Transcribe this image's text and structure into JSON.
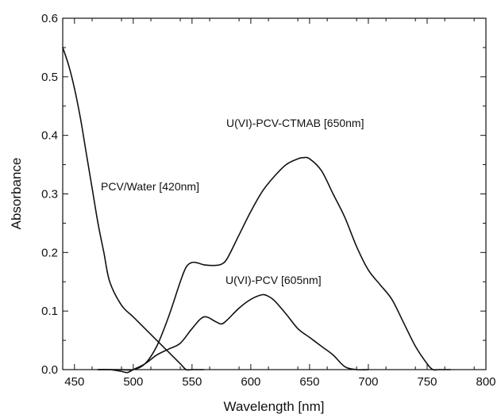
{
  "chart_data": {
    "type": "line",
    "title": "",
    "xlabel": "Wavelength [nm]",
    "ylabel": "Absorbance",
    "xlim": [
      440,
      800
    ],
    "ylim": [
      0.0,
      0.6
    ],
    "x_ticks": [
      450,
      500,
      550,
      600,
      650,
      700,
      750,
      800
    ],
    "y_ticks": [
      0.0,
      0.1,
      0.2,
      0.3,
      0.4,
      0.5,
      0.6
    ],
    "x_tick_labels": [
      "450",
      "500",
      "550",
      "600",
      "650",
      "700",
      "750",
      "800"
    ],
    "y_tick_labels": [
      "0.0",
      "0.1",
      "0.2",
      "0.3",
      "0.4",
      "0.5",
      "0.6"
    ],
    "grid": false,
    "legend": "none",
    "series": [
      {
        "label": "PCV/Water [420nm]",
        "x": [
          440,
          445,
          450,
          455,
          460,
          465,
          470,
          475,
          480,
          490,
          500,
          510,
          520,
          530,
          540,
          545,
          550,
          560
        ],
        "y": [
          0.55,
          0.52,
          0.48,
          0.43,
          0.37,
          0.31,
          0.25,
          0.2,
          0.15,
          0.11,
          0.09,
          0.07,
          0.05,
          0.03,
          0.01,
          0.0,
          0.0,
          0.0
        ]
      },
      {
        "label": "U(VI)-PCV-CTMAB [650nm]",
        "x": [
          470,
          480,
          490,
          500,
          510,
          520,
          530,
          540,
          545,
          550,
          555,
          560,
          565,
          570,
          575,
          580,
          590,
          600,
          610,
          620,
          630,
          640,
          645,
          650,
          660,
          670,
          680,
          690,
          700,
          710,
          720,
          730,
          740,
          750,
          755,
          760,
          770
        ],
        "y": [
          0.0,
          0.0,
          0.0,
          0.0,
          0.01,
          0.04,
          0.09,
          0.15,
          0.175,
          0.183,
          0.182,
          0.179,
          0.178,
          0.178,
          0.18,
          0.19,
          0.23,
          0.27,
          0.305,
          0.33,
          0.35,
          0.36,
          0.362,
          0.36,
          0.34,
          0.3,
          0.26,
          0.21,
          0.17,
          0.145,
          0.12,
          0.08,
          0.04,
          0.01,
          0.0,
          0.0,
          0.0
        ]
      },
      {
        "label": "U(VI)-PCV [605nm]",
        "x": [
          470,
          480,
          490,
          495,
          500,
          510,
          520,
          530,
          540,
          550,
          560,
          570,
          575,
          580,
          590,
          600,
          610,
          615,
          620,
          630,
          640,
          650,
          660,
          670,
          680,
          690,
          700
        ],
        "y": [
          0.0,
          0.0,
          -0.003,
          -0.005,
          0.0,
          0.01,
          0.025,
          0.035,
          0.045,
          0.07,
          0.09,
          0.082,
          0.078,
          0.085,
          0.105,
          0.12,
          0.128,
          0.125,
          0.118,
          0.095,
          0.07,
          0.055,
          0.04,
          0.025,
          0.005,
          0.0,
          0.0
        ]
      }
    ]
  }
}
